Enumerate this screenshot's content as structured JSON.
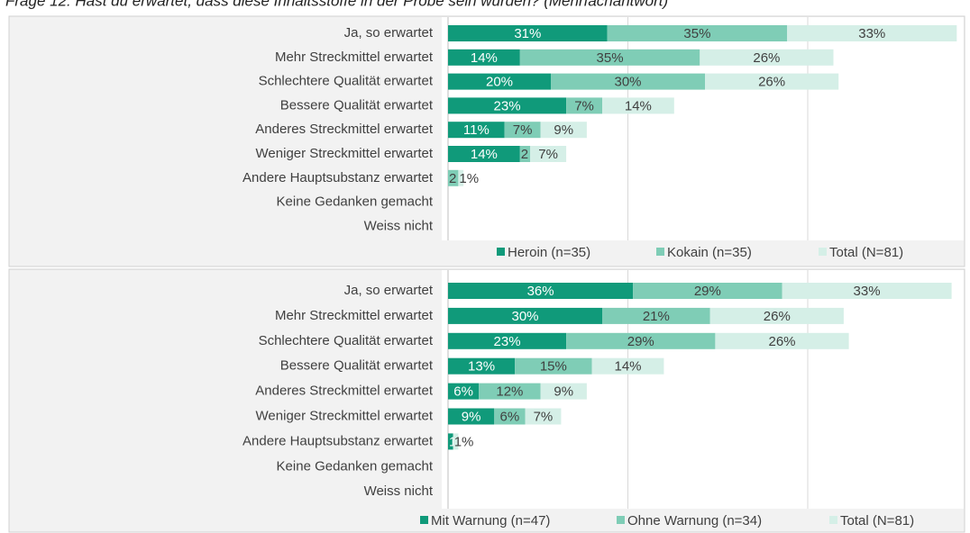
{
  "chart_data": [
    {
      "type": "stacked_bar",
      "title": "Frage 12: Hast du erwartet, dass diese Inhaltsstoffe in der Probe sein würden? (Mehrfachantwort)",
      "categories": [
        "Ja, so erwartet",
        "Mehr Streckmittel erwartet",
        "Schlechtere Qualität erwartet",
        "Bessere Qualität erwartet",
        "Anderes Streckmittel erwartet",
        "Weniger Streckmittel erwartet",
        "Andere Hauptsubstanz erwartet",
        "Keine Gedanken gemacht",
        "Weiss nicht"
      ],
      "series": [
        {
          "name": "Heroin (n=35)",
          "color": "#109a7a",
          "values": [
            31,
            14,
            20,
            23,
            11,
            14,
            0,
            0,
            0
          ],
          "value_labels": [
            "31%",
            "14%",
            "20%",
            "23%",
            "11%",
            "14%",
            null,
            null,
            null
          ]
        },
        {
          "name": "Kokain (n=35)",
          "color": "#7fcdb6",
          "values": [
            35,
            35,
            30,
            7,
            7,
            2,
            2,
            0,
            0
          ],
          "value_labels": [
            "35%",
            "35%",
            "30%",
            "7%",
            "7%",
            "2",
            "2",
            null,
            null
          ]
        },
        {
          "name": "Total (N=81)",
          "color": "#d5efe7",
          "values": [
            33,
            26,
            26,
            14,
            9,
            7,
            1,
            0,
            0
          ],
          "value_labels": [
            "33%",
            "26%",
            "26%",
            "14%",
            "9%",
            "7%",
            "1%",
            null,
            null
          ]
        }
      ],
      "xlim": [
        0,
        100
      ],
      "xticks": [
        0,
        35,
        70
      ],
      "grid": true,
      "legend": "bottom"
    },
    {
      "type": "stacked_bar",
      "categories": [
        "Ja, so erwartet",
        "Mehr Streckmittel erwartet",
        "Schlechtere Qualität erwartet",
        "Bessere Qualität erwartet",
        "Anderes Streckmittel erwartet",
        "Weniger Streckmittel erwartet",
        "Andere Hauptsubstanz erwartet",
        "Keine Gedanken gemacht",
        "Weiss nicht"
      ],
      "series": [
        {
          "name": "Mit Warnung (n=47)",
          "color": "#109a7a",
          "values": [
            36,
            30,
            23,
            13,
            6,
            9,
            1,
            0,
            0
          ],
          "value_labels": [
            "36%",
            "30%",
            "23%",
            "13%",
            "6%",
            "9%",
            "1",
            null,
            null
          ]
        },
        {
          "name": "Ohne Warnung (n=34)",
          "color": "#7fcdb6",
          "values": [
            29,
            21,
            29,
            15,
            12,
            6,
            0,
            0,
            0
          ],
          "value_labels": [
            "29%",
            "21%",
            "29%",
            "15%",
            "12%",
            "6%",
            null,
            null,
            null
          ]
        },
        {
          "name": "Total (N=81)",
          "color": "#d5efe7",
          "values": [
            33,
            26,
            26,
            14,
            9,
            7,
            1,
            0,
            0
          ],
          "value_labels": [
            "33%",
            "26%",
            "26%",
            "14%",
            "9%",
            "7%",
            "1%",
            null,
            null
          ]
        }
      ],
      "xlim": [
        0,
        100
      ],
      "xticks": [
        0,
        35,
        70
      ],
      "grid": true,
      "legend": "bottom"
    }
  ]
}
